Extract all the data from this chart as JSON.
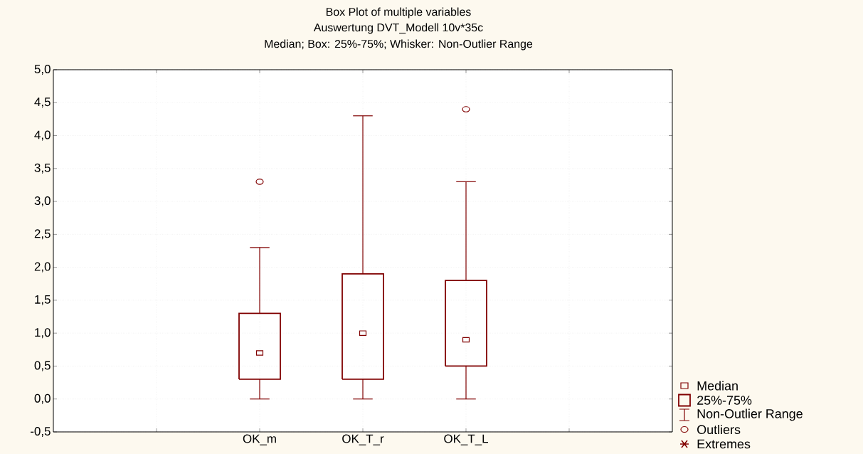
{
  "chart_data": {
    "type": "box",
    "title": "Box Plot of multiple variables",
    "subtitle": "Auswertung DVT_Modell 10v*35c",
    "categories": [
      null,
      "OK_m",
      "OK_T_r",
      "OK_T_L",
      null
    ],
    "boxes": [
      null,
      {
        "low": 0,
        "q1": 0.3,
        "median": 0.7,
        "q3": 1.3,
        "high": 2.3,
        "outliers": [
          3.3
        ]
      },
      {
        "low": 0,
        "q1": 0.3,
        "median": 1.0,
        "q3": 1.9,
        "high": 4.3
      },
      {
        "low": 0,
        "q1": 0.5,
        "median": 0.9,
        "q3": 1.8,
        "high": 3.3,
        "outliers": [
          4.4
        ]
      },
      null
    ],
    "color": "#800000",
    "ylim": [
      -0.5,
      5.0
    ],
    "yticks": [
      {
        "value": -0.5,
        "label": "-0,5"
      },
      {
        "value": 0,
        "label": "0,0"
      },
      {
        "value": 0.5,
        "label": "0,5"
      },
      {
        "value": 1.0,
        "label": "1,0"
      },
      {
        "value": 1.5,
        "label": "1,5"
      },
      {
        "value": 2.0,
        "label": "2,0"
      },
      {
        "value": 2.5,
        "label": "2,5"
      },
      {
        "value": 3.0,
        "label": "3,0"
      },
      {
        "value": 3.5,
        "label": "3,5"
      },
      {
        "value": 4.0,
        "label": "4,0"
      },
      {
        "value": 4.5,
        "label": "4,5"
      },
      {
        "value": 5.0,
        "label": "5,0"
      }
    ],
    "grid": true,
    "annotations": [
      "Median; Box: 25%-75%; Whisker: Non-Outlier Range",
      "Median",
      "25%-75%",
      "Non-Outlier Range",
      "Outliers",
      "Extremes"
    ]
  }
}
